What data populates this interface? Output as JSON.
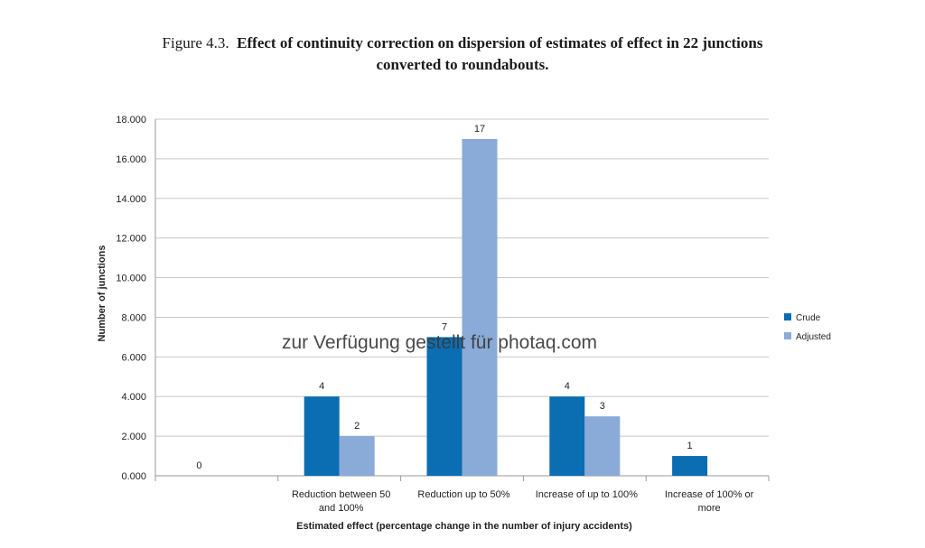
{
  "figure": {
    "number": "Figure 4.3.",
    "title_line1": "Effect of continuity correction on dispersion of estimates of effect in 22 junctions",
    "title_line2": "converted to roundabouts."
  },
  "watermark": "zur Verfügung gestellt für photaq.com",
  "chart_data": {
    "type": "bar",
    "categories": [
      "",
      "Reduction between 50 and 100%",
      "Reduction up to 50%",
      "Increase of up to 100%",
      "Increase of 100% or more"
    ],
    "category_lines": [
      [
        ""
      ],
      [
        "Reduction between 50",
        "and 100%"
      ],
      [
        "Reduction up to 50%"
      ],
      [
        "Increase of up to 100%"
      ],
      [
        "Increase of 100% or",
        "more"
      ]
    ],
    "series": [
      {
        "name": "Crude",
        "color": "#0b6db2",
        "values": [
          0,
          4,
          7,
          4,
          1
        ],
        "labels": [
          "0",
          "4",
          "7",
          "4",
          "1"
        ]
      },
      {
        "name": "Adjusted",
        "color": "#8aaad8",
        "values": [
          0,
          2,
          17,
          3,
          0
        ],
        "labels": [
          "",
          "2",
          "17",
          "3",
          ""
        ]
      }
    ],
    "xlabel": "Estimated effect (percentage change in the number of injury accidents)",
    "ylabel": "Number of junctions",
    "ylim": [
      0,
      18
    ],
    "yticks": [
      0,
      2,
      4,
      6,
      8,
      10,
      12,
      14,
      16,
      18
    ],
    "ytick_labels": [
      "0.000",
      "2.000",
      "4.000",
      "6.000",
      "8.000",
      "10.000",
      "12.000",
      "14.000",
      "16.000",
      "18.000"
    ],
    "grid": true,
    "legend_position": "right"
  }
}
